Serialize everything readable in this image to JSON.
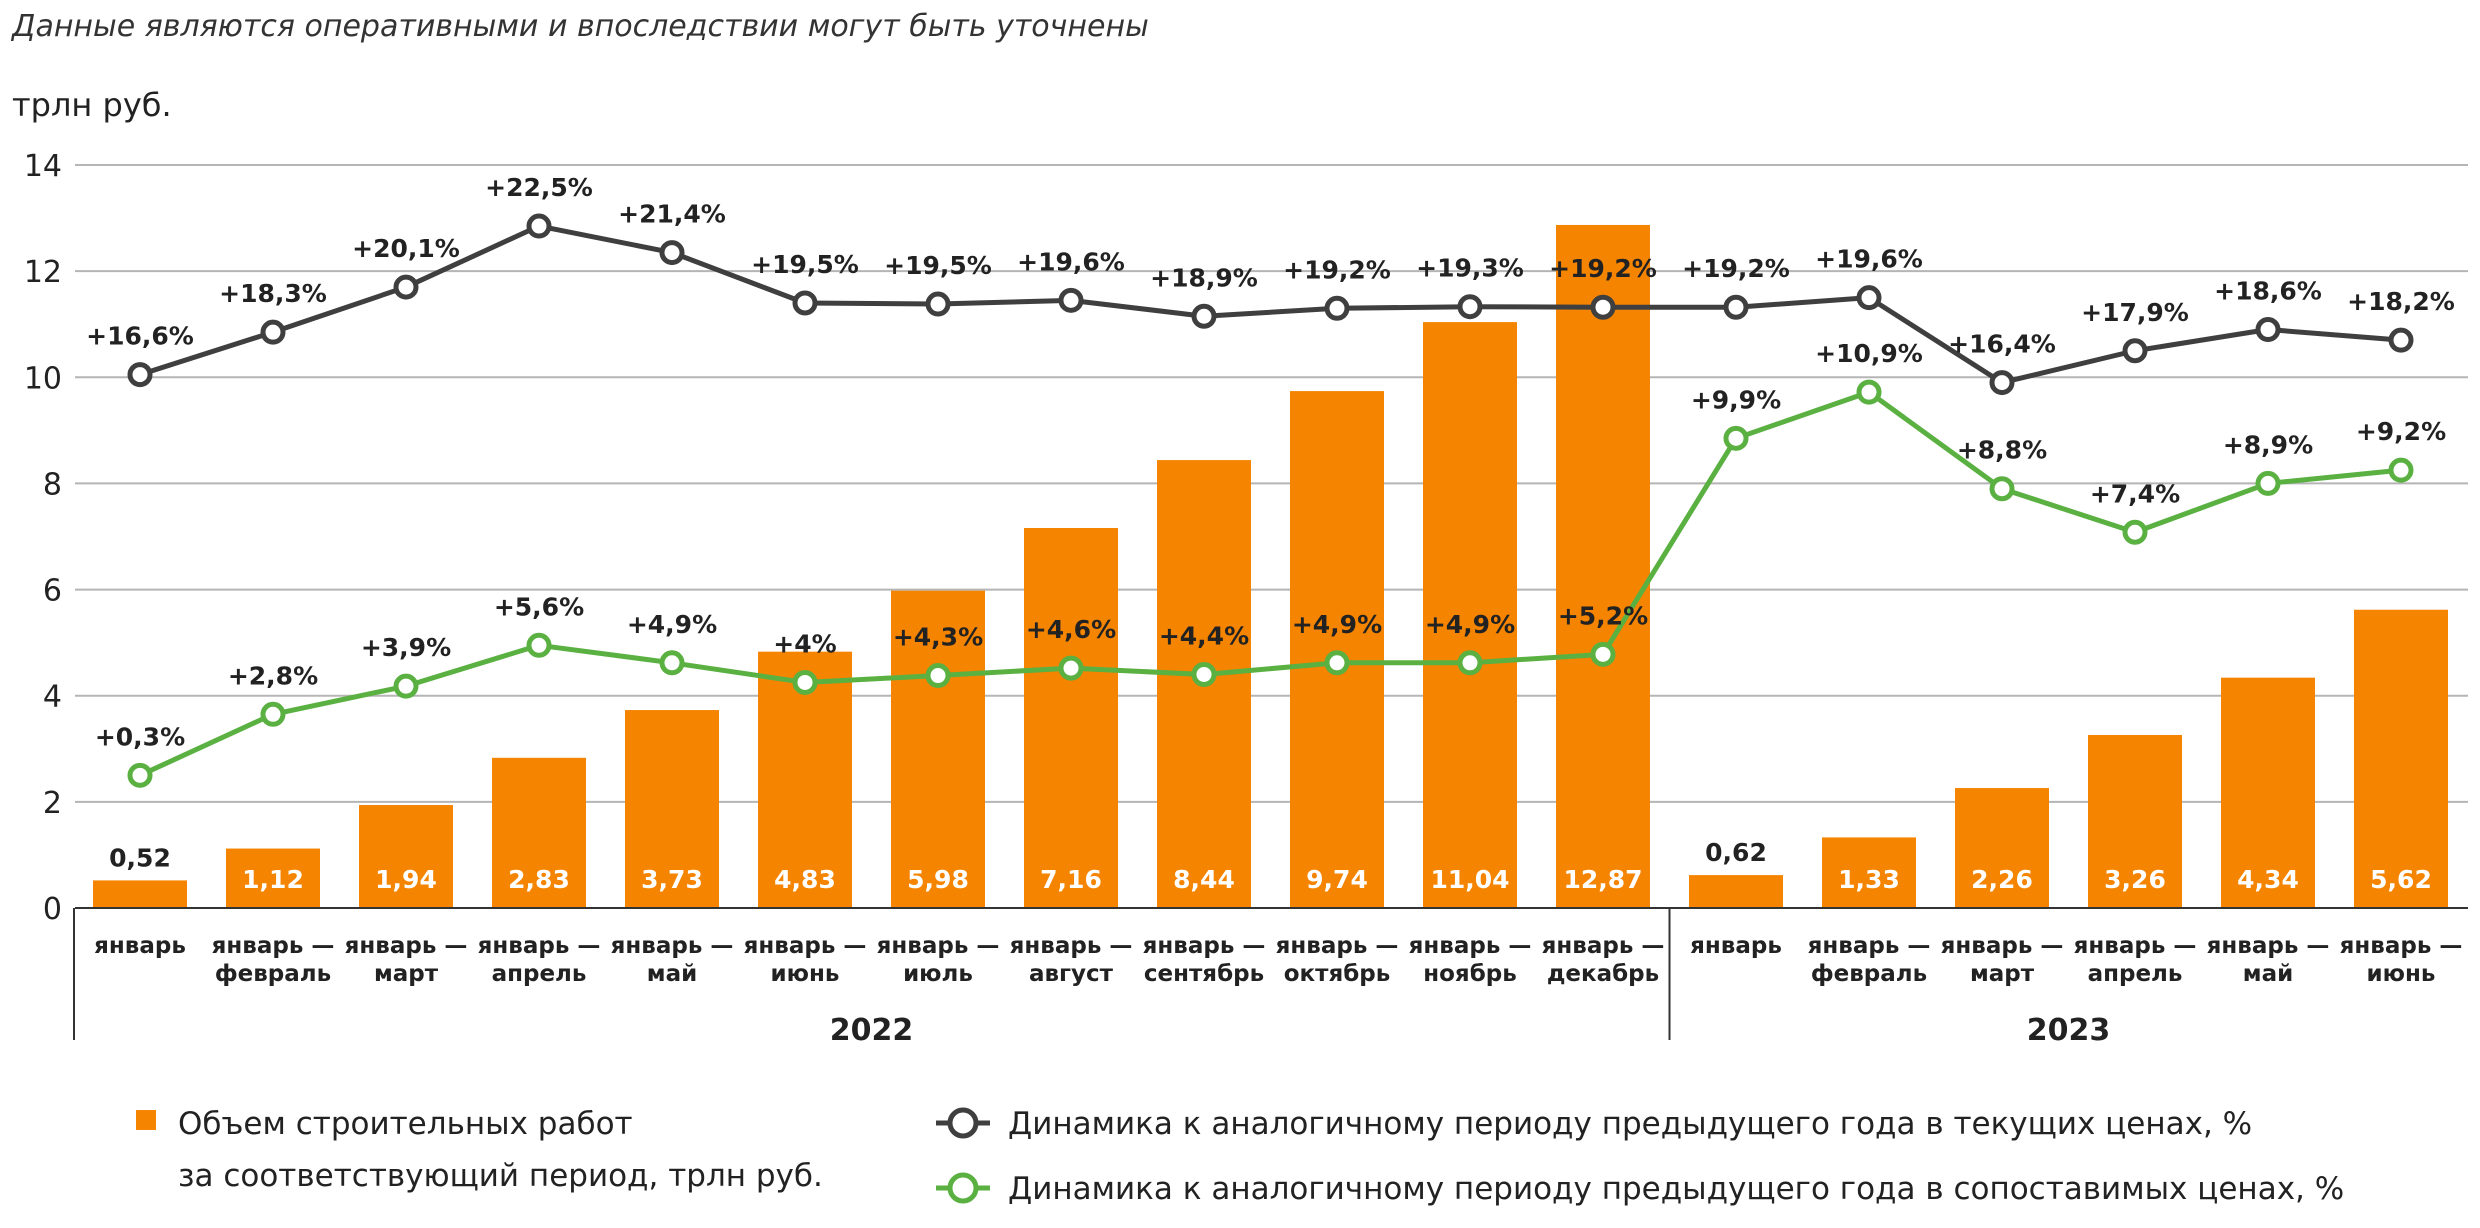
{
  "note": "Данные являются оперативными и впоследствии могут быть уточнены",
  "unit_label": "трлн руб.",
  "colors": {
    "bars": "#f58400",
    "current_prices": "#3f3f3f",
    "comparable_prices": "#5ab142",
    "grid": "#b5b5b5",
    "axis": "#333333"
  },
  "legend": {
    "bars_line1": "Объем строительных работ",
    "bars_line2": "за соответствующий период, трлн руб.",
    "current": "Динамика к аналогичному периоду предыдущего года в текущих ценах, %",
    "comparable": "Динамика к аналогичному периоду предыдущего года в сопоставимых ценах, %"
  },
  "chart_data": {
    "type": "bar",
    "ylim": [
      0,
      14
    ],
    "yticks": [
      0,
      2,
      4,
      6,
      8,
      10,
      12,
      14
    ],
    "grid": true,
    "legend_position": "bottom",
    "groups": [
      {
        "label": "2022",
        "count": 12
      },
      {
        "label": "2023",
        "count": 6
      }
    ],
    "categories": [
      [
        "январь"
      ],
      [
        "январь —",
        "февраль"
      ],
      [
        "январь —",
        "март"
      ],
      [
        "январь —",
        "апрель"
      ],
      [
        "январь —",
        "май"
      ],
      [
        "январь —",
        "июнь"
      ],
      [
        "январь —",
        "июль"
      ],
      [
        "январь —",
        "август"
      ],
      [
        "январь —",
        "сентябрь"
      ],
      [
        "январь —",
        "октябрь"
      ],
      [
        "январь —",
        "ноябрь"
      ],
      [
        "январь —",
        "декабрь"
      ],
      [
        "январь"
      ],
      [
        "январь —",
        "февраль"
      ],
      [
        "январь —",
        "март"
      ],
      [
        "январь —",
        "апрель"
      ],
      [
        "январь —",
        "май"
      ],
      [
        "январь —",
        "июнь"
      ]
    ],
    "bars": {
      "name": "Объем строительных работ за соответствующий период, трлн руб.",
      "values": [
        0.52,
        1.12,
        1.94,
        2.83,
        3.73,
        4.83,
        5.98,
        7.16,
        8.44,
        9.74,
        11.04,
        12.87,
        0.62,
        1.33,
        2.26,
        3.26,
        4.34,
        5.62
      ],
      "labels": [
        "0,52",
        "1,12",
        "1,94",
        "2,83",
        "3,73",
        "4,83",
        "5,98",
        "7,16",
        "8,44",
        "9,74",
        "11,04",
        "12,87",
        "0,62",
        "1,33",
        "2,26",
        "3,26",
        "4,34",
        "5,62"
      ]
    },
    "series": [
      {
        "name": "Динамика к аналогичному периоду предыдущего года в текущих ценах, %",
        "labels": [
          "+16,6%",
          "+18,3%",
          "+20,1%",
          "+22,5%",
          "+21,4%",
          "+19,5%",
          "+19,5%",
          "+19,6%",
          "+18,9%",
          "+19,2%",
          "+19,3%",
          "+19,2%",
          "+19,2%",
          "+19,6%",
          "+16,4%",
          "+17,9%",
          "+18,6%",
          "+18,2%"
        ],
        "y_on_axis": [
          10.05,
          10.85,
          11.7,
          12.85,
          12.35,
          11.4,
          11.38,
          11.45,
          11.15,
          11.3,
          11.33,
          11.32,
          11.32,
          11.5,
          9.9,
          10.5,
          10.9,
          10.7
        ]
      },
      {
        "name": "Динамика к аналогичному периоду предыдущего года в сопоставимых ценах, %",
        "labels": [
          "+0,3%",
          "+2,8%",
          "+3,9%",
          "+5,6%",
          "+4,9%",
          "+4%",
          "+4,3%",
          "+4,6%",
          "+4,4%",
          "+4,9%",
          "+4,9%",
          "+5,2%",
          "+9,9%",
          "+10,9%",
          "+8,8%",
          "+7,4%",
          "+8,9%",
          "+9,2%"
        ],
        "y_on_axis": [
          2.5,
          3.65,
          4.18,
          4.95,
          4.62,
          4.25,
          4.38,
          4.52,
          4.4,
          4.62,
          4.62,
          4.78,
          8.85,
          9.72,
          7.9,
          7.08,
          8.0,
          8.25
        ]
      }
    ]
  }
}
